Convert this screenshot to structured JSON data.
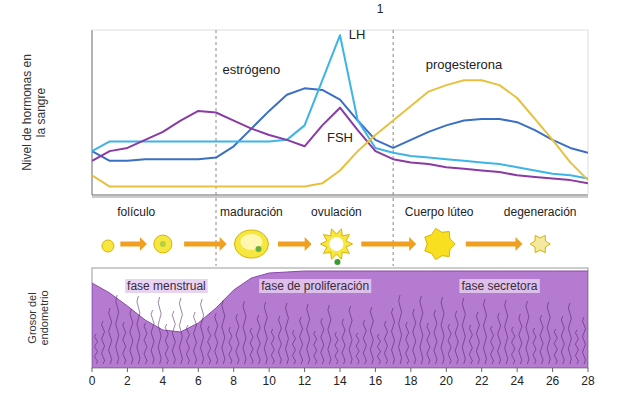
{
  "page_number": "1",
  "chart_data": [
    {
      "type": "line",
      "y_label": "Nivel de hormonas en la sangre",
      "x": [
        0,
        1,
        2,
        3,
        4,
        5,
        6,
        7,
        8,
        9,
        10,
        11,
        12,
        13,
        14,
        15,
        16,
        17,
        18,
        19,
        20,
        21,
        22,
        23,
        24,
        25,
        26,
        27,
        28
      ],
      "xlim": [
        0,
        28
      ],
      "ylim": [
        0,
        100
      ],
      "tick_labels": false,
      "phase_boundaries": [
        7,
        17
      ],
      "series": [
        {
          "name": "estrógeno",
          "color": "#3a6fc4",
          "values": [
            26,
            20,
            20,
            21,
            21,
            21,
            21,
            22,
            29,
            40,
            51,
            61,
            65,
            64,
            58,
            45,
            33,
            28,
            33,
            38,
            42,
            45,
            46,
            46,
            44,
            39,
            33,
            28,
            25
          ]
        },
        {
          "name": "LH",
          "color": "#3db4e6",
          "values": [
            26,
            32,
            32,
            32,
            32,
            32,
            32,
            32,
            32,
            32,
            32,
            33,
            42,
            70,
            98,
            45,
            28,
            25,
            23,
            22,
            21,
            20,
            19,
            18,
            16,
            14,
            12,
            11,
            9
          ]
        },
        {
          "name": "FSH",
          "color": "#8a3aa3",
          "values": [
            20,
            26,
            28,
            33,
            38,
            45,
            51,
            50,
            45,
            40,
            36,
            33,
            29,
            42,
            53,
            39,
            26,
            21,
            19,
            18,
            16,
            15,
            14,
            13,
            11,
            10,
            9,
            8,
            6
          ]
        },
        {
          "name": "progesterona",
          "color": "#e8c040",
          "values": [
            11,
            4,
            4,
            4,
            4,
            4,
            4,
            4,
            4,
            4,
            4,
            4,
            4,
            6,
            14,
            26,
            36,
            45,
            54,
            63,
            67,
            70,
            70,
            67,
            59,
            46,
            33,
            19,
            8
          ]
        }
      ]
    },
    {
      "type": "area",
      "y_label": "Grosor del endometrio",
      "x": [
        0,
        1,
        2,
        3,
        4,
        5,
        6,
        7,
        8,
        9,
        10,
        11,
        12,
        13,
        14,
        15,
        16,
        17,
        18,
        19,
        20,
        21,
        22,
        23,
        24,
        25,
        26,
        27,
        28
      ],
      "xlim": [
        0,
        28
      ],
      "xticks": [
        0,
        2,
        4,
        6,
        8,
        10,
        12,
        14,
        16,
        18,
        20,
        22,
        24,
        26,
        28
      ],
      "ylim": [
        0,
        100
      ],
      "tick_labels": "x",
      "color": "#b57bd0",
      "values": [
        85,
        75,
        62,
        48,
        38,
        36,
        45,
        60,
        78,
        90,
        95,
        96,
        97,
        97,
        97,
        97,
        97,
        97,
        97,
        97,
        97,
        97,
        97,
        97,
        97,
        97,
        97,
        97,
        97
      ],
      "annotations": [
        "fase menstrual",
        "fase de proliferación",
        "fase secretora"
      ]
    }
  ],
  "follicle_stages": [
    "folículo",
    "maduración",
    "ovulación",
    "Cuerpo lúteo",
    "degeneración"
  ]
}
